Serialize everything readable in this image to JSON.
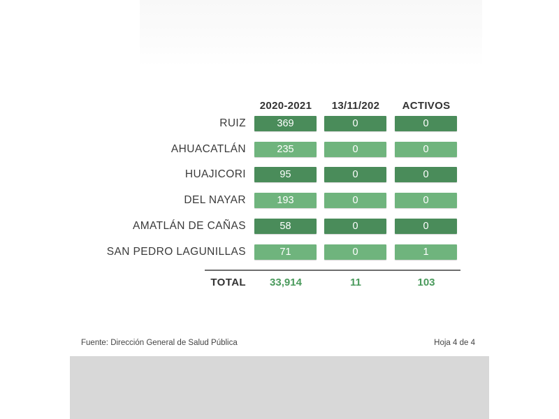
{
  "table": {
    "columns": [
      "2020-2021",
      "13/11/202",
      "ACTIVOS"
    ],
    "rows": [
      {
        "label": "RUIZ",
        "values": [
          "369",
          "0",
          "0"
        ],
        "shade": "dark"
      },
      {
        "label": "AHUACATLÁN",
        "values": [
          "235",
          "0",
          "0"
        ],
        "shade": "light"
      },
      {
        "label": "HUAJICORI",
        "values": [
          "95",
          "0",
          "0"
        ],
        "shade": "dark"
      },
      {
        "label": "DEL NAYAR",
        "values": [
          "193",
          "0",
          "0"
        ],
        "shade": "light"
      },
      {
        "label": "AMATLÁN DE CAÑAS",
        "values": [
          "58",
          "0",
          "0"
        ],
        "shade": "dark"
      },
      {
        "label": "SAN PEDRO LAGUNILLAS",
        "values": [
          "71",
          "0",
          "1"
        ],
        "shade": "light"
      }
    ],
    "total": {
      "label": "TOTAL",
      "values": [
        "33,914",
        "11",
        "103"
      ]
    }
  },
  "footer": {
    "source": "Fuente: Dirección General de Salud Pública",
    "page": "Hoja 4 de 4"
  },
  "colors": {
    "dark_cell": "#4a8c5a",
    "light_cell": "#6fb47d",
    "total_text": "#4a9a5c"
  }
}
